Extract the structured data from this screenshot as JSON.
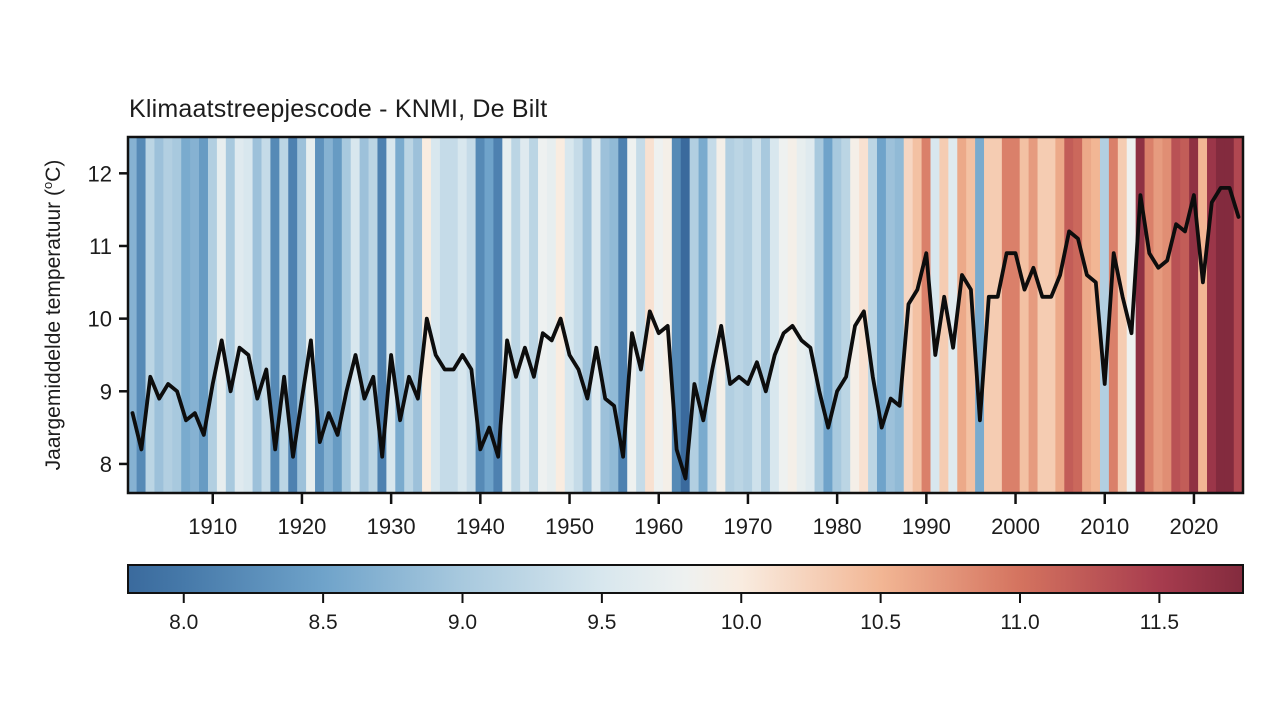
{
  "header": {
    "title": "Klimaatstreepjescode - KNMI, De Bilt"
  },
  "axes": {
    "ylabel_prefix": "Jaargemiddelde temperatuur (",
    "ylabel_sup": "o",
    "ylabel_suffix": "C)"
  },
  "chart_data": {
    "type": "line",
    "title": "Klimaatstreepjescode - KNMI, De Bilt",
    "xlabel": "",
    "ylabel": "Jaargemiddelde temperatuur (°C)",
    "year_start": 1901,
    "year_end": 2025,
    "values": [
      8.7,
      8.2,
      9.2,
      8.9,
      9.1,
      9.0,
      8.6,
      8.7,
      8.4,
      9.1,
      9.7,
      9.0,
      9.6,
      9.5,
      8.9,
      9.3,
      8.2,
      9.2,
      8.1,
      8.9,
      9.7,
      8.3,
      8.7,
      8.4,
      9.0,
      9.5,
      8.9,
      9.2,
      8.1,
      9.5,
      8.6,
      9.2,
      8.9,
      10.0,
      9.5,
      9.3,
      9.3,
      9.5,
      9.3,
      8.2,
      8.5,
      8.1,
      9.7,
      9.2,
      9.6,
      9.2,
      9.8,
      9.7,
      10.0,
      9.5,
      9.3,
      8.9,
      9.6,
      8.9,
      8.8,
      8.1,
      9.8,
      9.3,
      10.1,
      9.8,
      9.9,
      8.2,
      7.8,
      9.1,
      8.6,
      9.3,
      9.9,
      9.1,
      9.2,
      9.1,
      9.4,
      9.0,
      9.5,
      9.8,
      9.9,
      9.7,
      9.6,
      9.0,
      8.5,
      9.0,
      9.2,
      9.9,
      10.1,
      9.2,
      8.5,
      8.9,
      8.8,
      10.2,
      10.4,
      10.9,
      9.5,
      10.3,
      9.6,
      10.6,
      10.4,
      8.6,
      10.3,
      10.3,
      10.9,
      10.9,
      10.4,
      10.7,
      10.3,
      10.3,
      10.6,
      11.2,
      11.1,
      10.6,
      10.5,
      9.1,
      10.9,
      10.3,
      9.8,
      11.7,
      10.9,
      10.7,
      10.8,
      11.3,
      11.2,
      11.7,
      10.5,
      11.6,
      11.8,
      11.8,
      11.4
    ],
    "ylim": [
      7.6,
      12.5
    ],
    "y_ticks": [
      8,
      9,
      10,
      11,
      12
    ],
    "x_ticks": [
      1910,
      1920,
      1930,
      1940,
      1950,
      1960,
      1970,
      1980,
      1990,
      2000,
      2010,
      2020
    ],
    "grid": false,
    "legend": "none",
    "line_color": "#0d0d0d",
    "stripes": {
      "vmin": 7.8,
      "vmax": 11.8,
      "colormap_stops": [
        [
          7.8,
          "#3a6a9d"
        ],
        [
          8.0,
          "#4679a9"
        ],
        [
          8.5,
          "#6fa3ca"
        ],
        [
          9.0,
          "#a8c9de"
        ],
        [
          9.5,
          "#d8e7ee"
        ],
        [
          9.8,
          "#eef1f0"
        ],
        [
          10.0,
          "#f9ece0"
        ],
        [
          10.5,
          "#f2b694"
        ],
        [
          11.0,
          "#d4735f"
        ],
        [
          11.5,
          "#a73c4e"
        ],
        [
          11.8,
          "#832b3e"
        ]
      ]
    }
  },
  "colorbar": {
    "min": 7.8,
    "max": 11.8,
    "tick_values": [
      8.0,
      8.5,
      9.0,
      9.5,
      10.0,
      10.5,
      11.0,
      11.5
    ],
    "tick_labels": [
      "8.0",
      "8.5",
      "9.0",
      "9.5",
      "10.0",
      "10.5",
      "11.0",
      "11.5"
    ]
  }
}
